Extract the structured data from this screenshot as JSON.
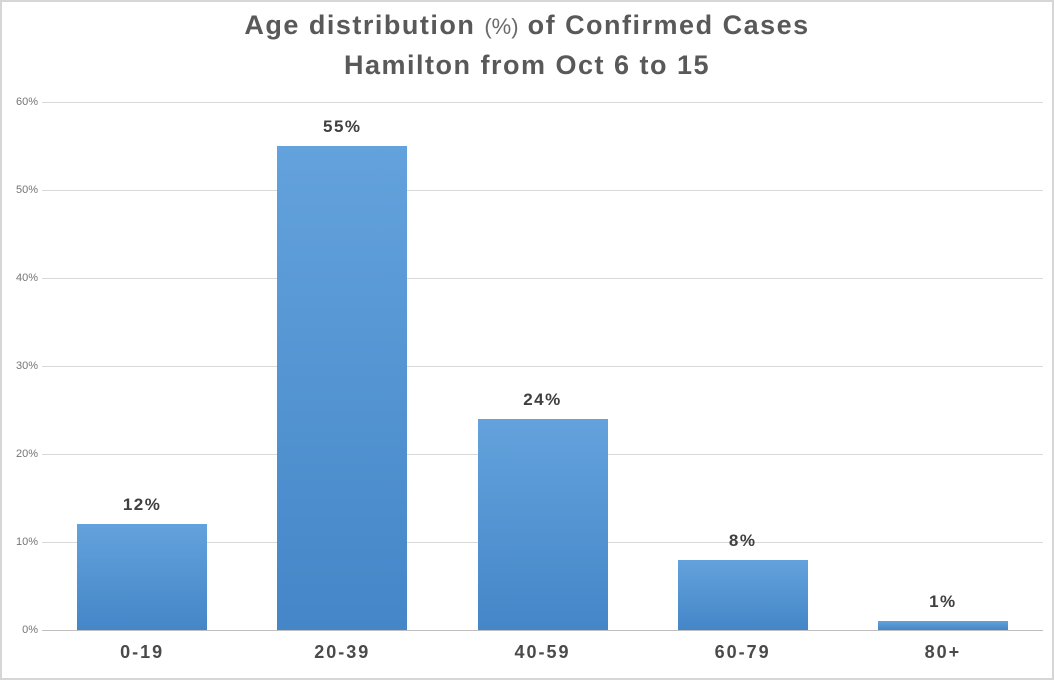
{
  "title": {
    "line1_prefix": "Age distribution",
    "line1_pct": "(%)",
    "line1_suffix": "of Confirmed Cases",
    "line2": "Hamilton from Oct 6 to 15"
  },
  "chart_data": {
    "type": "bar",
    "title": "Age distribution (%) of Confirmed Cases Hamilton from Oct 6 to 15",
    "categories": [
      "0-19",
      "20-39",
      "40-59",
      "60-79",
      "80+"
    ],
    "values": [
      12,
      55,
      24,
      8,
      1
    ],
    "data_labels": [
      "12%",
      "55%",
      "24%",
      "8%",
      "1%"
    ],
    "xlabel": "",
    "ylabel": "",
    "ylim": [
      0,
      60
    ],
    "y_tick_step": 10,
    "y_tick_labels": [
      "0%",
      "10%",
      "20%",
      "30%",
      "40%",
      "50%",
      "60%"
    ],
    "grid": "horizontal",
    "legend": "none"
  },
  "colors": {
    "title_text": "#595959",
    "bar_gradient_top": "#63a2dc",
    "bar_gradient_bottom": "#4486c8",
    "gridline": "#d9d9d9",
    "axis_line": "#bfbfbf",
    "y_tick_text": "#757575",
    "label_text": "#404040",
    "frame_border": "#d6d6d6",
    "background": "#ffffff"
  }
}
